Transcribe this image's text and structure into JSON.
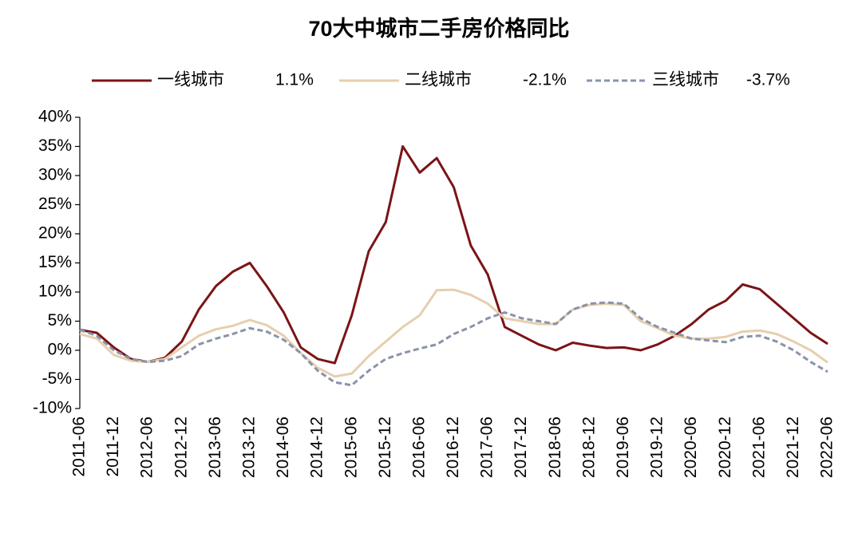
{
  "chart_data": {
    "type": "line",
    "title": "70大中城市二手房价格同比",
    "categories": [
      "2011-06",
      null,
      "2011-12",
      null,
      "2012-06",
      null,
      "2012-12",
      null,
      "2013-06",
      null,
      "2013-12",
      null,
      "2014-06",
      null,
      "2014-12",
      null,
      "2015-06",
      null,
      "2015-12",
      null,
      "2016-06",
      null,
      "2016-12",
      null,
      "2017-06",
      null,
      "2017-12",
      null,
      "2018-06",
      null,
      "2018-12",
      null,
      "2019-06",
      null,
      "2019-12",
      null,
      "2020-06",
      null,
      "2020-12",
      null,
      "2021-06",
      null,
      "2021-12",
      null,
      "2022-06"
    ],
    "series": [
      {
        "name": "一线城市",
        "legend_label": "1.1%",
        "color": "#7b1416",
        "dashed": false,
        "values": [
          3.5,
          3,
          0.5,
          -1.5,
          -2,
          -1.3,
          1.5,
          7,
          11,
          13.5,
          15,
          11,
          6.5,
          0.5,
          -1.5,
          -2.2,
          6,
          17,
          22,
          35,
          30.5,
          33,
          28,
          18,
          13,
          4,
          2.5,
          1,
          0,
          1.3,
          0.8,
          0.4,
          0.5,
          0,
          1,
          2.5,
          4.5,
          7,
          8.5,
          11.3,
          10.5,
          8,
          5.5,
          3,
          1.1
        ]
      },
      {
        "name": "二线城市",
        "legend_label": "-2.1%",
        "color": "#e6cfae",
        "dashed": false,
        "values": [
          2.8,
          2,
          -0.8,
          -1.8,
          -2,
          -1.5,
          0.5,
          2.5,
          3.6,
          4.2,
          5.2,
          4.3,
          2.5,
          -0.5,
          -3,
          -4.5,
          -4,
          -1,
          1.5,
          4,
          6,
          10.3,
          10.4,
          9.5,
          8,
          5.5,
          5,
          4.5,
          4.5,
          7,
          7.8,
          8,
          7.8,
          5,
          3.8,
          2.5,
          2,
          2,
          2.3,
          3.2,
          3.4,
          2.8,
          1.5,
          0,
          -2.1
        ]
      },
      {
        "name": "三线城市",
        "legend_label": "-3.7%",
        "color": "#8a93a8",
        "dashed": true,
        "values": [
          3.5,
          2.5,
          0,
          -1.5,
          -2,
          -1.8,
          -1,
          1,
          2,
          2.8,
          3.8,
          3.2,
          1.8,
          -0.5,
          -3.5,
          -5.5,
          -6,
          -3.5,
          -1.5,
          -0.5,
          0.3,
          1,
          2.8,
          4,
          5.5,
          6.5,
          5.5,
          5,
          4.5,
          7,
          8,
          8.2,
          8,
          5.5,
          4,
          3,
          2,
          1.7,
          1.4,
          2.3,
          2.5,
          1.5,
          0,
          -2,
          -3.7
        ]
      }
    ],
    "ylim": [
      -10,
      40
    ],
    "yticks": [
      {
        "value": -10,
        "label": "-10%"
      },
      {
        "value": -5,
        "label": "-5%"
      },
      {
        "value": 0,
        "label": "0%"
      },
      {
        "value": 5,
        "label": "5%"
      },
      {
        "value": 10,
        "label": "10%"
      },
      {
        "value": 15,
        "label": "15%"
      },
      {
        "value": 20,
        "label": "20%"
      },
      {
        "value": 25,
        "label": "25%"
      },
      {
        "value": 30,
        "label": "30%"
      },
      {
        "value": 35,
        "label": "35%"
      },
      {
        "value": 40,
        "label": "40%"
      }
    ],
    "grid": false,
    "legend": "top"
  }
}
